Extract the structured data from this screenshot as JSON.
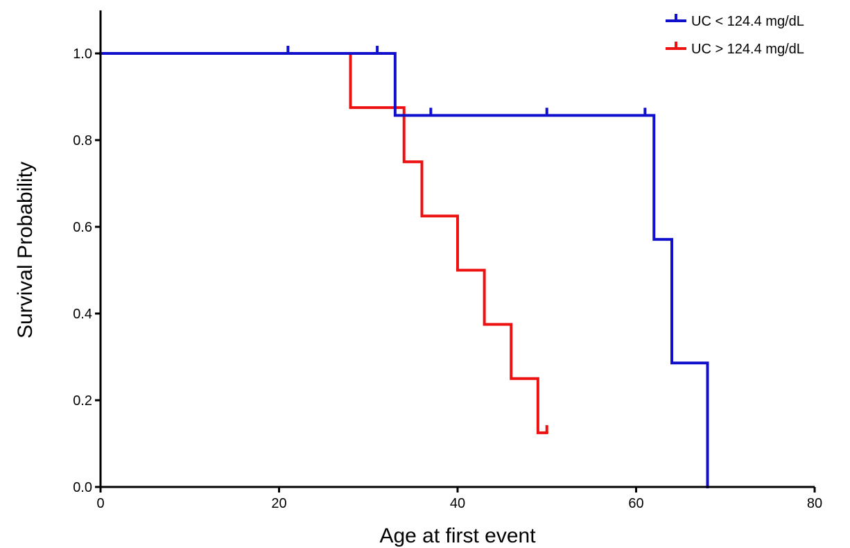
{
  "chart_data": {
    "type": "line",
    "subtype": "kaplan-meier",
    "title": "",
    "xlabel": "Age at first event",
    "ylabel": "Survival Probability",
    "xlim": [
      0,
      80
    ],
    "ylim": [
      0,
      1.1
    ],
    "xticks": [
      0,
      20,
      40,
      60,
      80
    ],
    "xtick_labels": [
      "0",
      "20",
      "40",
      "60",
      "80"
    ],
    "yticks": [
      0,
      0.2,
      0.4,
      0.6,
      0.8,
      1.0
    ],
    "ytick_labels": [
      "0.0",
      "0.2",
      "0.4",
      "0.6",
      "0.8",
      "1.0"
    ],
    "grid": false,
    "legend_position": "top-right",
    "series": [
      {
        "name": "UC < 124.4 mg/dL",
        "color": "#1010cc",
        "steps": [
          {
            "x": 0,
            "y": 1.0
          },
          {
            "x": 33,
            "y": 0.857
          },
          {
            "x": 62,
            "y": 0.571
          },
          {
            "x": 64,
            "y": 0.286
          },
          {
            "x": 68,
            "y": 0.0
          }
        ],
        "end_x": 68,
        "censored": [
          {
            "x": 21,
            "y": 1.0
          },
          {
            "x": 31,
            "y": 1.0
          },
          {
            "x": 37,
            "y": 0.857
          },
          {
            "x": 50,
            "y": 0.857
          },
          {
            "x": 61,
            "y": 0.857
          }
        ]
      },
      {
        "name": "UC > 124.4 mg/dL",
        "color": "#ee1111",
        "steps": [
          {
            "x": 0,
            "y": 1.0
          },
          {
            "x": 28,
            "y": 0.875
          },
          {
            "x": 34,
            "y": 0.75
          },
          {
            "x": 36,
            "y": 0.625
          },
          {
            "x": 40,
            "y": 0.5
          },
          {
            "x": 43,
            "y": 0.375
          },
          {
            "x": 46,
            "y": 0.25
          },
          {
            "x": 49,
            "y": 0.125
          }
        ],
        "end_x": 50,
        "censored": [
          {
            "x": 50,
            "y": 0.125
          }
        ]
      }
    ]
  }
}
